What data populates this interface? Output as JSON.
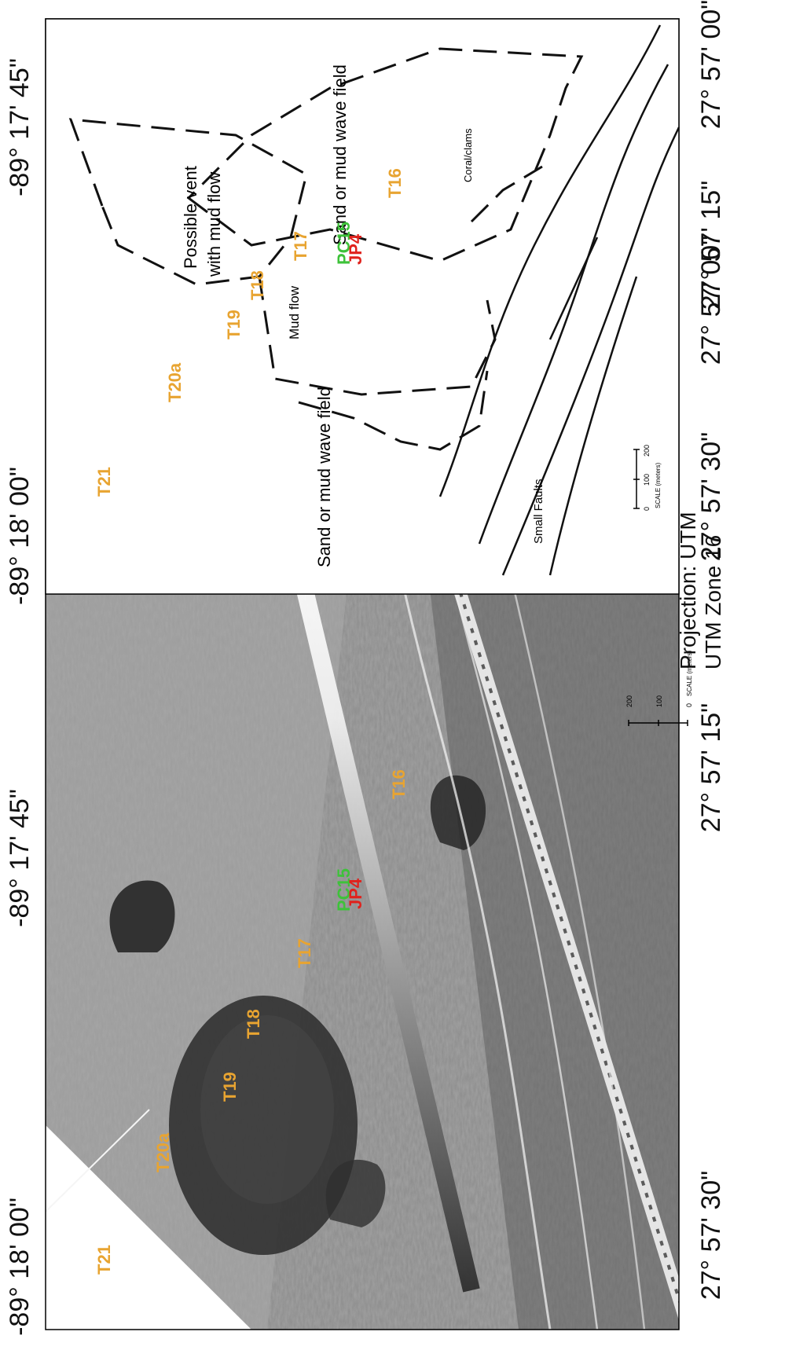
{
  "sonar_panel": {
    "lon_labels": [
      "-89° 18' 00\"",
      "-89° 17' 45\""
    ],
    "lat_labels": [
      "27° 57' 30\"",
      "27° 57' 15\"",
      "27° 57' 00\""
    ],
    "site_labels": [
      {
        "text": "T21",
        "color": "#e8a431"
      },
      {
        "text": "T20a",
        "color": "#e8a431"
      },
      {
        "text": "T19",
        "color": "#e8a431"
      },
      {
        "text": "T18",
        "color": "#e8a431"
      },
      {
        "text": "T17",
        "color": "#e8a431"
      },
      {
        "text": "PC15",
        "color": "#3ec23a"
      },
      {
        "text": "JP4",
        "color": "#e0221d"
      },
      {
        "text": "T16",
        "color": "#e8a431"
      }
    ],
    "scale": {
      "title": "SCALE (meters)",
      "ticks": [
        "0",
        "100",
        "200"
      ]
    }
  },
  "projection": {
    "line1": "Projection: UTM",
    "line2": "UTM Zone 16"
  },
  "interp_panel": {
    "lon_labels": [
      "-89° 18' 00\"",
      "-89° 17' 45\""
    ],
    "lat_labels": [
      "27° 57' 30\"",
      "27° 57' 15\"",
      "27° 57' 00\""
    ],
    "site_labels": [
      {
        "text": "T21",
        "color": "#e8a431"
      },
      {
        "text": "T20a",
        "color": "#e8a431"
      },
      {
        "text": "T19",
        "color": "#e8a431"
      },
      {
        "text": "T18",
        "color": "#e8a431"
      },
      {
        "text": "T17",
        "color": "#e8a431"
      },
      {
        "text": "PC15",
        "color": "#3ec23a"
      },
      {
        "text": "JP4",
        "color": "#e0221d"
      },
      {
        "text": "T16",
        "color": "#e8a431"
      }
    ],
    "features": {
      "vent_line1": "Possible vent",
      "vent_line2": "with mud flow",
      "mud_flow": "Mud flow",
      "wave_field_upper": "Sand or mud wave field",
      "wave_field_lower": "Sand or mud wave field",
      "coral": "Coral/clams",
      "faults": "Small Faults"
    },
    "scale": {
      "title": "SCALE (meters)",
      "ticks": [
        "0",
        "100",
        "200"
      ]
    }
  }
}
